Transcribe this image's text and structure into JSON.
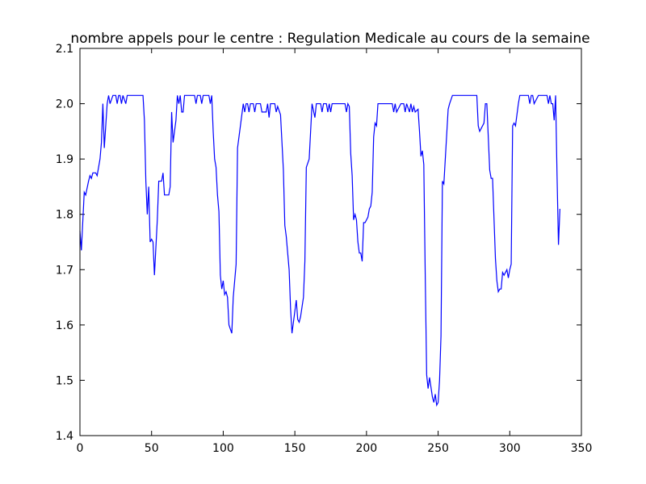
{
  "chart_data": {
    "type": "line",
    "title": "nombre appels pour le centre : Regulation Medicale au cours de la semaine",
    "x": [
      0,
      1,
      3,
      4,
      6,
      7,
      8,
      9,
      11,
      12,
      14,
      15,
      16,
      17,
      18,
      19,
      20,
      21,
      23,
      25,
      26,
      27,
      28,
      29,
      30,
      32,
      33,
      44,
      45,
      46,
      47,
      48,
      49,
      50,
      51,
      52,
      54,
      55,
      57,
      58,
      59,
      62,
      63,
      64,
      65,
      67,
      68,
      69,
      70,
      71,
      72,
      73,
      80,
      81,
      82,
      84,
      85,
      86,
      90,
      91,
      92,
      93,
      94,
      95,
      96,
      97,
      98,
      99,
      100,
      101,
      102,
      103,
      104,
      106,
      107,
      109,
      110,
      112,
      114,
      115,
      116,
      117,
      118,
      119,
      121,
      122,
      123,
      126,
      127,
      130,
      131,
      132,
      133,
      136,
      137,
      138,
      140,
      142,
      143,
      144,
      146,
      147,
      148,
      149,
      151,
      152,
      153,
      154,
      156,
      157,
      158,
      160,
      162,
      164,
      165,
      168,
      169,
      170,
      172,
      173,
      174,
      175,
      176,
      185,
      186,
      187,
      188,
      189,
      190,
      191,
      192,
      193,
      194,
      195,
      196,
      197,
      198,
      199,
      201,
      202,
      203,
      204,
      205,
      206,
      207,
      208,
      218,
      219,
      220,
      221,
      224,
      226,
      227,
      228,
      230,
      231,
      232,
      233,
      234,
      236,
      237,
      238,
      239,
      240,
      241,
      242,
      243,
      244,
      246,
      247,
      248,
      249,
      250,
      251,
      252,
      253,
      254,
      255,
      257,
      258,
      260,
      277,
      278,
      279,
      280,
      282,
      283,
      284,
      286,
      287,
      288,
      290,
      291,
      292,
      293,
      294,
      295,
      296,
      298,
      299,
      300,
      301,
      302,
      303,
      304,
      306,
      307,
      313,
      314,
      315,
      316,
      317,
      320,
      326,
      327,
      328,
      329,
      330,
      331,
      332,
      333,
      334,
      335
    ],
    "series": [
      {
        "color": "#0000ff",
        "values": [
          1.77,
          1.735,
          1.84,
          1.835,
          1.86,
          1.87,
          1.865,
          1.875,
          1.875,
          1.87,
          1.9,
          1.93,
          2.0,
          1.92,
          1.96,
          2.0,
          2.015,
          2.0,
          2.015,
          2.015,
          2.0,
          2.015,
          2.015,
          2.0,
          2.015,
          2.0,
          2.015,
          2.015,
          1.97,
          1.86,
          1.8,
          1.85,
          1.75,
          1.755,
          1.75,
          1.69,
          1.79,
          1.86,
          1.86,
          1.875,
          1.835,
          1.835,
          1.85,
          1.985,
          1.93,
          1.97,
          2.015,
          2.0,
          2.015,
          1.985,
          1.985,
          2.015,
          2.015,
          2.0,
          2.015,
          2.015,
          2.0,
          2.015,
          2.015,
          2.0,
          2.015,
          1.95,
          1.9,
          1.885,
          1.835,
          1.805,
          1.69,
          1.665,
          1.68,
          1.655,
          1.66,
          1.65,
          1.6,
          1.585,
          1.65,
          1.71,
          1.92,
          1.96,
          2.0,
          1.985,
          2.0,
          2.0,
          1.985,
          2.0,
          2.0,
          1.985,
          2.0,
          2.0,
          1.985,
          1.985,
          2.0,
          1.975,
          2.0,
          2.0,
          1.985,
          1.995,
          1.98,
          1.88,
          1.78,
          1.76,
          1.7,
          1.63,
          1.585,
          1.605,
          1.645,
          1.61,
          1.605,
          1.615,
          1.65,
          1.715,
          1.885,
          1.9,
          2.0,
          1.975,
          2.0,
          2.0,
          1.985,
          2.0,
          2.0,
          1.985,
          2.0,
          1.985,
          2.0,
          2.0,
          1.985,
          2.0,
          1.995,
          1.91,
          1.87,
          1.79,
          1.8,
          1.79,
          1.75,
          1.73,
          1.73,
          1.715,
          1.785,
          1.785,
          1.795,
          1.81,
          1.815,
          1.84,
          1.94,
          1.965,
          1.96,
          2.0,
          2.0,
          1.985,
          2.0,
          1.985,
          2.0,
          2.0,
          1.985,
          2.0,
          1.985,
          2.0,
          1.985,
          1.995,
          1.985,
          1.99,
          1.95,
          1.905,
          1.915,
          1.89,
          1.69,
          1.51,
          1.485,
          1.505,
          1.47,
          1.46,
          1.475,
          1.455,
          1.46,
          1.5,
          1.58,
          1.86,
          1.855,
          1.9,
          1.99,
          2.0,
          2.015,
          2.015,
          1.96,
          1.95,
          1.955,
          1.965,
          2.0,
          2.0,
          1.88,
          1.865,
          1.865,
          1.72,
          1.68,
          1.66,
          1.665,
          1.665,
          1.695,
          1.69,
          1.7,
          1.685,
          1.7,
          1.71,
          1.96,
          1.965,
          1.96,
          2.0,
          2.015,
          2.015,
          2.0,
          2.015,
          2.015,
          2.0,
          2.015,
          2.015,
          2.0,
          2.015,
          2.0,
          2.0,
          1.97,
          2.015,
          1.87,
          1.745,
          1.81
        ]
      }
    ],
    "xlim": [
      0,
      350
    ],
    "xticks": [
      0,
      50,
      100,
      150,
      200,
      250,
      300,
      350
    ],
    "ylim": [
      1.4,
      2.1
    ],
    "yticks": [
      1.4,
      1.5,
      1.6,
      1.7,
      1.8,
      1.9,
      {
        "value": 2,
        "label": "2.0"
      },
      2.1
    ]
  }
}
